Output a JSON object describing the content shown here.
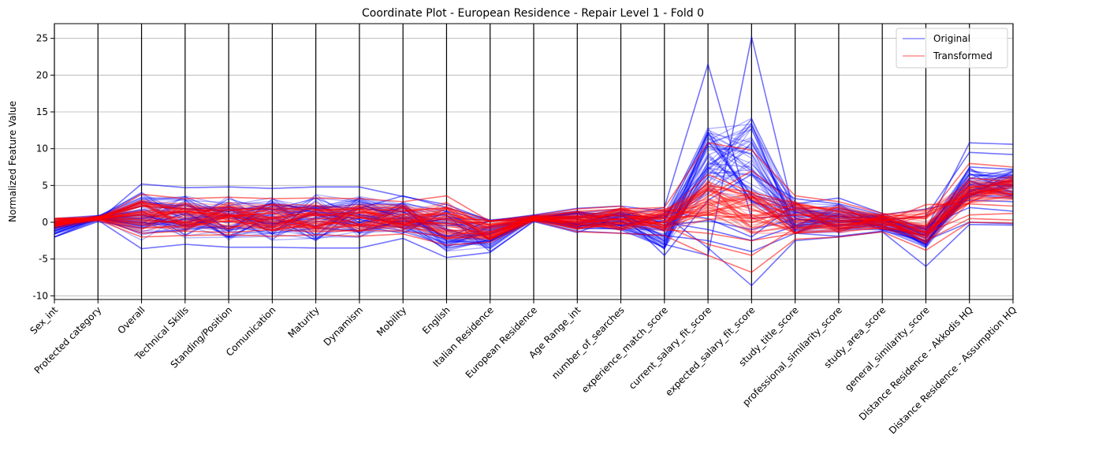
{
  "chart_data": {
    "type": "line",
    "subtype": "parallel-coordinates",
    "title": "Coordinate Plot - European Residence - Repair Level 1 - Fold 0",
    "ylabel": "Normalized Feature Value",
    "ylim": [
      -10.5,
      27
    ],
    "yticks": [
      -10,
      -5,
      0,
      5,
      10,
      15,
      20,
      25
    ],
    "grid": "y",
    "legend_position": "top-right",
    "categories": [
      "Sex_int",
      "Protected category",
      "Overall",
      "Technical Skills",
      "Standing/Position",
      "Comunication",
      "Maturity",
      "Dynamism",
      "Mobility",
      "English",
      "Italian Residence",
      "European Residence",
      "Age Range_int",
      "number_of_searches",
      "experience_match_score",
      "current_salary_fit_score",
      "expected_salary_fit_score",
      "study_title_score",
      "professional_similarity_score",
      "study_area_score",
      "general_similarity_score",
      "Distance Residence - Akkodis HQ",
      "Distance Residence - Assumption HQ"
    ],
    "series": [
      {
        "name": "Original",
        "color": "#0000ff",
        "bands": {
          "min": [
            -2.0,
            0.2,
            -3.7,
            -3.1,
            -3.5,
            -3.5,
            -3.6,
            -3.6,
            -2.5,
            -4.9,
            -4.2,
            0.1,
            -1.4,
            -1.6,
            -4.6,
            -5.0,
            -8.6,
            -2.5,
            -2.2,
            -1.5,
            -6.2,
            -0.5,
            -0.5
          ],
          "max": [
            0.5,
            1.0,
            5.2,
            4.7,
            4.8,
            4.6,
            4.8,
            4.8,
            3.6,
            2.5,
            0.3,
            1.1,
            2.0,
            2.4,
            2.3,
            21.5,
            25.2,
            3.5,
            3.5,
            1.4,
            2.0,
            11.2,
            11.0
          ]
        },
        "samples": [
          [
            0.5,
            0.4,
            1.0,
            -0.5,
            0.8,
            -0.3,
            1.2,
            0.4,
            -0.8,
            0.6,
            0.2,
            0.6,
            1.2,
            0.5,
            -0.4,
            0.2,
            -1.0,
            0.4,
            0.1,
            0.2,
            -0.6,
            2.0,
            1.5
          ],
          [
            -2.0,
            0.3,
            -3.6,
            -3.0,
            -3.4,
            -3.4,
            -3.5,
            -3.5,
            -2.2,
            -4.8,
            -4.1,
            0.2,
            -1.2,
            -1.5,
            -1.8,
            -2.5,
            -4.0,
            -1.5,
            -1.9,
            -1.2,
            -2.5,
            0.0,
            -0.2
          ],
          [
            0.5,
            0.2,
            5.2,
            4.7,
            4.8,
            4.6,
            4.8,
            4.8,
            3.5,
            2.4,
            0.2,
            1.0,
            1.9,
            2.2,
            1.5,
            0.5,
            -2.0,
            2.5,
            3.3,
            1.2,
            -1.0,
            10.8,
            10.6
          ],
          [
            -2.0,
            0.6,
            2.2,
            1.8,
            2.0,
            1.7,
            2.2,
            1.9,
            3.6,
            2.0,
            0.3,
            0.8,
            0.6,
            0.9,
            2.0,
            21.5,
            0.5,
            1.0,
            0.8,
            0.5,
            -1.5,
            6.5,
            6.0
          ],
          [
            0.5,
            0.5,
            -1.5,
            -1.0,
            -0.5,
            -1.5,
            -0.8,
            -1.2,
            0.2,
            -0.5,
            0.1,
            0.5,
            -0.5,
            0.2,
            -3.0,
            -4.5,
            25.2,
            0.5,
            -0.5,
            0.3,
            0.8,
            9.5,
            9.2
          ],
          [
            0.5,
            0.9,
            0.5,
            1.5,
            -2.0,
            0.8,
            -2.5,
            2.0,
            1.0,
            -2.0,
            0.2,
            0.9,
            1.5,
            -0.5,
            1.0,
            -3.5,
            -8.6,
            -2.5,
            -2.0,
            -1.3,
            -6.0,
            -0.3,
            -0.4
          ],
          [
            -2.0,
            0.1,
            -0.8,
            0.5,
            1.0,
            -0.2,
            0.6,
            -0.5,
            -1.5,
            1.5,
            0.2,
            0.4,
            0.0,
            1.2,
            -4.5,
            3.0,
            6.5,
            3.2,
            2.5,
            1.0,
            1.8,
            3.0,
            2.8
          ],
          [
            0.5,
            0.3,
            2.8,
            2.2,
            1.5,
            2.5,
            1.8,
            2.5,
            0.5,
            1.0,
            -4.0,
            0.1,
            -1.4,
            0.8,
            0.0,
            -1.0,
            -2.5,
            -0.5,
            0.3,
            -0.5,
            -3.0,
            7.5,
            7.2
          ]
        ]
      },
      {
        "name": "Transformed",
        "color": "#ff0000",
        "bands": {
          "min": [
            -0.8,
            0.2,
            -2.0,
            -1.9,
            -1.8,
            -2.0,
            -1.8,
            -2.0,
            -1.8,
            -3.2,
            -2.8,
            0.1,
            -1.4,
            -1.6,
            -1.8,
            -4.8,
            -7.0,
            -2.4,
            -2.1,
            -1.4,
            -4.0,
            -0.2,
            -0.2
          ],
          "max": [
            0.5,
            0.9,
            3.8,
            3.5,
            3.4,
            3.3,
            3.3,
            3.3,
            3.0,
            3.6,
            0.2,
            1.0,
            1.9,
            2.5,
            2.3,
            10.8,
            9.8,
            3.6,
            3.0,
            1.5,
            2.6,
            8.5,
            9.5
          ]
        },
        "samples": [
          [
            0.5,
            0.4,
            3.8,
            3.2,
            3.4,
            3.2,
            3.3,
            3.2,
            2.8,
            3.6,
            0.1,
            0.7,
            1.5,
            1.8,
            2.0,
            10.8,
            9.8,
            3.6,
            2.8,
            1.2,
            0.5,
            8.0,
            7.5
          ],
          [
            -0.8,
            0.3,
            -2.0,
            -1.8,
            -1.7,
            -1.9,
            -1.7,
            -1.9,
            -1.6,
            -3.1,
            -2.7,
            0.2,
            -1.3,
            -1.5,
            -1.8,
            -4.5,
            -6.8,
            -2.3,
            -2.0,
            -1.3,
            -3.8,
            0.0,
            -0.1
          ],
          [
            0.5,
            0.6,
            1.0,
            1.5,
            0.8,
            1.2,
            0.9,
            1.4,
            0.6,
            1.2,
            0.1,
            0.8,
            0.6,
            0.9,
            0.5,
            1.0,
            0.5,
            1.0,
            0.8,
            0.4,
            -0.5,
            6.0,
            5.5
          ],
          [
            0.5,
            0.5,
            -0.8,
            -0.5,
            0.2,
            -0.6,
            0.1,
            -0.4,
            0.3,
            -0.2,
            0.1,
            0.5,
            0.0,
            0.4,
            1.2,
            6.5,
            4.0,
            0.2,
            0.5,
            0.2,
            0.8,
            4.0,
            3.8
          ],
          [
            0.5,
            0.2,
            2.2,
            1.8,
            1.6,
            2.0,
            1.7,
            1.8,
            1.5,
            2.0,
            0.2,
            0.9,
            1.8,
            2.2,
            -0.5,
            -3.0,
            -4.5,
            -0.8,
            -0.3,
            0.0,
            2.4,
            2.5,
            2.2
          ],
          [
            0.5,
            0.8,
            0.3,
            0.0,
            -0.8,
            0.5,
            -0.6,
            0.6,
            -0.3,
            0.8,
            0.2,
            0.3,
            -0.8,
            -0.2,
            0.0,
            3.5,
            7.0,
            2.5,
            1.5,
            0.8,
            -1.5,
            1.0,
            1.2
          ],
          [
            0.5,
            0.4,
            -1.5,
            -1.2,
            -1.4,
            -1.0,
            -1.3,
            -1.1,
            -1.2,
            -2.0,
            -2.2,
            0.6,
            0.8,
            0.5,
            -1.0,
            -1.5,
            -2.5,
            -1.5,
            -1.2,
            -0.8,
            -2.5,
            0.5,
            0.3
          ]
        ]
      }
    ]
  }
}
